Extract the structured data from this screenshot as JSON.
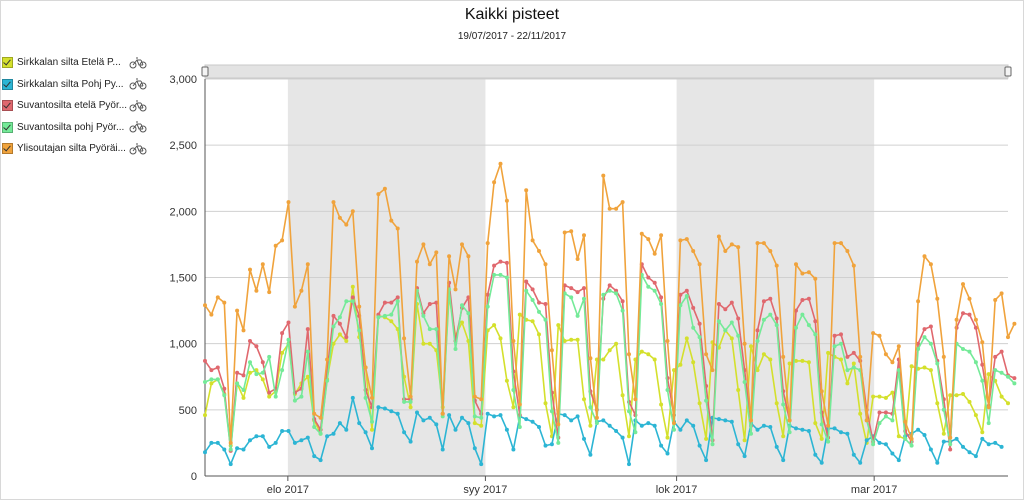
{
  "title": "Kaikki pisteet",
  "subtitle": "19/07/2017 - 22/11/2017",
  "legend": {
    "items": [
      {
        "label": "Sirkkalan silta Etelä P...",
        "color": "#d4e02c",
        "icon": "bicycle-icon"
      },
      {
        "label": "Sirkkalan silta Pohj Py...",
        "color": "#2cb5d4",
        "icon": "bicycle-icon"
      },
      {
        "label": "Suvantosilta etelä Pyör...",
        "color": "#e0686e",
        "icon": "bicycle-icon"
      },
      {
        "label": "Suvantosilta pohj Pyör...",
        "color": "#74ea98",
        "icon": "bicycle-icon"
      },
      {
        "label": "Ylisoutajan silta Pyöräi...",
        "color": "#f0a33c",
        "icon": "bicycle-icon"
      }
    ]
  },
  "chart_data": {
    "type": "line",
    "title": "Kaikki pisteet",
    "subtitle": "19/07/2017 - 22/11/2017",
    "x_start": "2017-07-19",
    "x_end": "2017-11-22",
    "x_month_labels": [
      {
        "label": "elo 2017",
        "date": "2017-08-01"
      },
      {
        "label": "syy 2017",
        "date": "2017-09-01"
      },
      {
        "label": "lok 2017",
        "date": "2017-10-01"
      },
      {
        "label": "mar 2017",
        "date": "2017-11-01"
      }
    ],
    "shaded_months": [
      {
        "from": "2017-08-01",
        "to": "2017-09-01"
      },
      {
        "from": "2017-10-01",
        "to": "2017-11-01"
      }
    ],
    "ylim": [
      0,
      3000
    ],
    "yticks": [
      0,
      500,
      1000,
      1500,
      2000,
      2500,
      3000
    ],
    "ytick_labels": [
      "0",
      "500",
      "1,000",
      "1,500",
      "2,000",
      "2,500",
      "3,000"
    ],
    "grid": true,
    "legend_position": "left",
    "series": [
      {
        "name": "Sirkkalan silta Etelä P...",
        "color": "#d4e02c",
        "values": [
          460,
          700,
          730,
          620,
          230,
          700,
          590,
          780,
          800,
          730,
          600,
          640,
          930,
          1000,
          620,
          700,
          750,
          420,
          320,
          730,
          1000,
          1070,
          1020,
          1430,
          1050,
          820,
          350,
          1210,
          1200,
          1170,
          1110,
          750,
          520,
          1300,
          1000,
          1000,
          950,
          520,
          1360,
          1060,
          1160,
          1020,
          400,
          380,
          1100,
          1140,
          1040,
          720,
          520,
          1220,
          1180,
          1170,
          1070,
          550,
          300,
          1140,
          1020,
          1030,
          1030,
          580,
          380,
          880,
          880,
          950,
          1000,
          610,
          300,
          880,
          940,
          920,
          880,
          540,
          290,
          800,
          840,
          1040,
          860,
          550,
          280,
          1010,
          970,
          1100,
          1040,
          650,
          270,
          980,
          800,
          920,
          880,
          550,
          300,
          850,
          870,
          870,
          860,
          400,
          280,
          930,
          900,
          880,
          700,
          850,
          470,
          250,
          600,
          600,
          590,
          630,
          300,
          280,
          830,
          810,
          820,
          800,
          550,
          320,
          610,
          610,
          620,
          560,
          460,
          330,
          770,
          720,
          600,
          550
        ]
      },
      {
        "name": "Sirkkalan silta Pohj Py...",
        "color": "#2cb5d4",
        "values": [
          180,
          250,
          250,
          200,
          90,
          210,
          200,
          270,
          300,
          300,
          220,
          250,
          340,
          340,
          250,
          270,
          290,
          150,
          120,
          300,
          320,
          400,
          350,
          590,
          400,
          330,
          210,
          520,
          510,
          490,
          470,
          330,
          260,
          480,
          420,
          440,
          390,
          200,
          460,
          350,
          440,
          400,
          210,
          90,
          470,
          450,
          460,
          350,
          200,
          450,
          430,
          410,
          370,
          230,
          240,
          470,
          460,
          420,
          450,
          280,
          160,
          410,
          420,
          380,
          340,
          290,
          90,
          420,
          380,
          400,
          380,
          230,
          170,
          410,
          350,
          420,
          380,
          230,
          120,
          440,
          430,
          420,
          410,
          240,
          150,
          400,
          350,
          380,
          370,
          220,
          120,
          380,
          360,
          350,
          340,
          160,
          100,
          360,
          360,
          330,
          320,
          160,
          100,
          270,
          300,
          250,
          240,
          170,
          120,
          300,
          320,
          350,
          310,
          200,
          100,
          260,
          260,
          280,
          220,
          180,
          150,
          280,
          240,
          250,
          220
        ]
      },
      {
        "name": "Suvantosilta etelä Pyör...",
        "color": "#e0686e",
        "values": [
          870,
          800,
          820,
          660,
          190,
          780,
          760,
          1020,
          980,
          860,
          630,
          660,
          1080,
          1160,
          630,
          660,
          1110,
          430,
          350,
          790,
          1210,
          1150,
          1050,
          1350,
          1210,
          650,
          520,
          1220,
          1310,
          1310,
          1350,
          580,
          580,
          1420,
          1230,
          1300,
          1310,
          470,
          1460,
          1020,
          1270,
          1350,
          570,
          470,
          1370,
          1590,
          1620,
          1610,
          790,
          460,
          1470,
          1410,
          1310,
          1300,
          630,
          290,
          1440,
          1420,
          1390,
          1420,
          640,
          500,
          1340,
          1440,
          1400,
          1320,
          560,
          460,
          1600,
          1500,
          1460,
          1350,
          740,
          460,
          1370,
          1400,
          1270,
          1150,
          680,
          270,
          1300,
          1260,
          1310,
          1190,
          800,
          380,
          1100,
          1320,
          1340,
          1190,
          640,
          420,
          1250,
          1330,
          1340,
          1170,
          480,
          290,
          1060,
          1070,
          900,
          930,
          870,
          500,
          260,
          480,
          480,
          470,
          880,
          340,
          260,
          1000,
          1110,
          1130,
          870,
          580,
          200,
          1120,
          1230,
          1220,
          1120,
          840,
          530,
          900,
          940,
          760,
          740
        ]
      },
      {
        "name": "Suvantosilta pohj Pyör...",
        "color": "#74ea98",
        "values": [
          710,
          730,
          730,
          610,
          200,
          700,
          650,
          860,
          770,
          780,
          900,
          600,
          800,
          1030,
          570,
          600,
          940,
          370,
          320,
          720,
          1130,
          1200,
          1320,
          1320,
          1100,
          590,
          410,
          1200,
          1210,
          1220,
          1320,
          560,
          560,
          1400,
          1210,
          1110,
          1110,
          450,
          1410,
          960,
          1290,
          1230,
          450,
          440,
          1280,
          1520,
          1520,
          1500,
          650,
          370,
          1400,
          1330,
          1240,
          1180,
          490,
          250,
          1380,
          1350,
          1210,
          1340,
          520,
          400,
          1370,
          1400,
          1380,
          1250,
          490,
          330,
          1520,
          1430,
          1400,
          1300,
          650,
          350,
          1290,
          1360,
          1120,
          1050,
          570,
          240,
          1170,
          1100,
          1160,
          1060,
          710,
          320,
          1020,
          1180,
          1220,
          1140,
          540,
          330,
          1120,
          1220,
          1140,
          1070,
          390,
          260,
          980,
          1000,
          800,
          820,
          800,
          420,
          240,
          400,
          450,
          420,
          800,
          280,
          230,
          960,
          1050,
          1000,
          850,
          500,
          240,
          1000,
          960,
          940,
          860,
          720,
          400,
          800,
          780,
          750,
          700
        ]
      },
      {
        "name": "Ylisoutajan silta Pyöräi...",
        "color": "#f0a33c",
        "values": [
          1290,
          1220,
          1350,
          1310,
          250,
          1250,
          1100,
          1560,
          1400,
          1600,
          1390,
          1740,
          1780,
          2070,
          1280,
          1400,
          1600,
          470,
          440,
          880,
          2070,
          1950,
          1900,
          2000,
          1280,
          820,
          590,
          2130,
          2170,
          1930,
          1870,
          1040,
          600,
          1620,
          1750,
          1600,
          1690,
          470,
          1660,
          1410,
          1750,
          1660,
          600,
          580,
          1760,
          2220,
          2360,
          2080,
          1020,
          540,
          2160,
          1780,
          1700,
          1600,
          950,
          390,
          1840,
          1850,
          1640,
          1820,
          890,
          440,
          2270,
          2020,
          2020,
          2070,
          920,
          580,
          1830,
          1790,
          1680,
          1820,
          1020,
          400,
          1780,
          1790,
          1700,
          1600,
          920,
          800,
          1810,
          1700,
          1750,
          1730,
          1000,
          420,
          1760,
          1760,
          1700,
          1590,
          900,
          420,
          1600,
          1530,
          1540,
          1490,
          640,
          380,
          1760,
          1760,
          1700,
          1590,
          900,
          420,
          1080,
          1060,
          920,
          860,
          980,
          410,
          280,
          1320,
          1660,
          1600,
          1340,
          900,
          290,
          1180,
          1450,
          1340,
          1180,
          1010,
          520,
          1330,
          1380,
          1050,
          1150
        ]
      }
    ]
  }
}
